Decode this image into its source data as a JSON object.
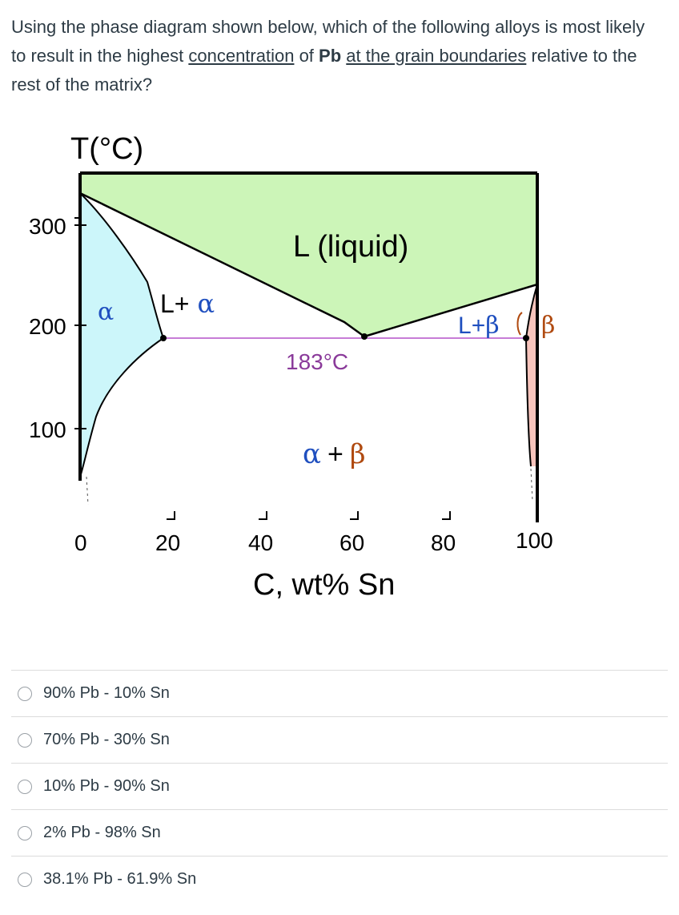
{
  "question": {
    "part1": "Using the phase diagram shown below, which of the following alloys is most likely to result in the highest ",
    "link1": "concentration",
    "part2": " of ",
    "bold": "Pb",
    "part3": " ",
    "link2": "at the grain boundaries",
    "part4": " relative to the rest of the matrix?"
  },
  "diagram": {
    "y_axis_label": "T(°C)",
    "y_ticks": [
      "300",
      "200",
      "100"
    ],
    "x_ticks": [
      "0",
      "20",
      "40",
      "60",
      "80",
      "100"
    ],
    "x_axis_label": "C, wt% Sn",
    "region_liquid": "L (liquid)",
    "region_alpha": "α",
    "region_L": "L",
    "region_plus": "+",
    "region_alpha2": "α",
    "region_L_beta": "L",
    "region_beta_small": "β",
    "region_beta": "β",
    "eutectic_label": "183°C",
    "two_phase_alpha": "α",
    "two_phase_plus": "+",
    "two_phase_beta": "β",
    "colors": {
      "liquid": "#ccf5b8",
      "alpha": "#ccf6fa",
      "beta": "#f7c4bc",
      "eutectic_line": "#c77dd6",
      "label_blue": "#1f4fbf",
      "label_brown": "#b04a10",
      "label_purple": "#8a3a9a"
    }
  },
  "answers": [
    {
      "label": "90% Pb - 10% Sn"
    },
    {
      "label": "70% Pb - 30% Sn"
    },
    {
      "label": "10% Pb - 90% Sn"
    },
    {
      "label": "2% Pb - 98% Sn"
    },
    {
      "label": "38.1% Pb - 61.9% Sn"
    }
  ]
}
